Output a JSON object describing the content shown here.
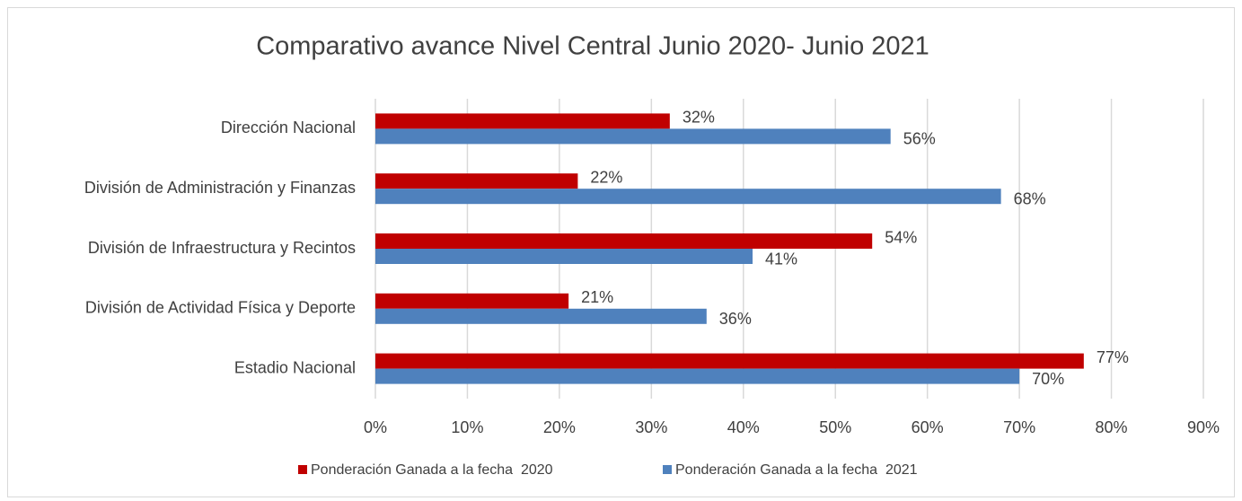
{
  "chart_data": {
    "type": "bar",
    "orientation": "horizontal",
    "title": "Comparativo avance Nivel Central Junio 2020- Junio 2021",
    "categories": [
      "Dirección Nacional",
      "División de Administración y Finanzas",
      "División de Infraestructura y Recintos",
      "División de Actividad Física y Deporte",
      "Estadio Nacional"
    ],
    "series": [
      {
        "name": "Ponderación Ganada a la fecha  2020",
        "color": "#c00000",
        "values": [
          32,
          22,
          54,
          21,
          77
        ],
        "value_labels": [
          "32%",
          "22%",
          "54%",
          "21%",
          "77%"
        ]
      },
      {
        "name": "Ponderación Ganada a la fecha  2021",
        "color": "#4f81bd",
        "values": [
          56,
          68,
          41,
          36,
          70
        ],
        "value_labels": [
          "56%",
          "68%",
          "41%",
          "36%",
          "70%"
        ]
      }
    ],
    "xlim": [
      0,
      90
    ],
    "xticks": [
      {
        "value": 0,
        "label": "0%"
      },
      {
        "value": 10,
        "label": "10%"
      },
      {
        "value": 20,
        "label": "20%"
      },
      {
        "value": 30,
        "label": "30%"
      },
      {
        "value": 40,
        "label": "40%"
      },
      {
        "value": 50,
        "label": "50%"
      },
      {
        "value": 60,
        "label": "60%"
      },
      {
        "value": 70,
        "label": "70%"
      },
      {
        "value": 80,
        "label": "80%"
      },
      {
        "value": 90,
        "label": "90%"
      }
    ],
    "grid": true,
    "legend": "bottom"
  }
}
